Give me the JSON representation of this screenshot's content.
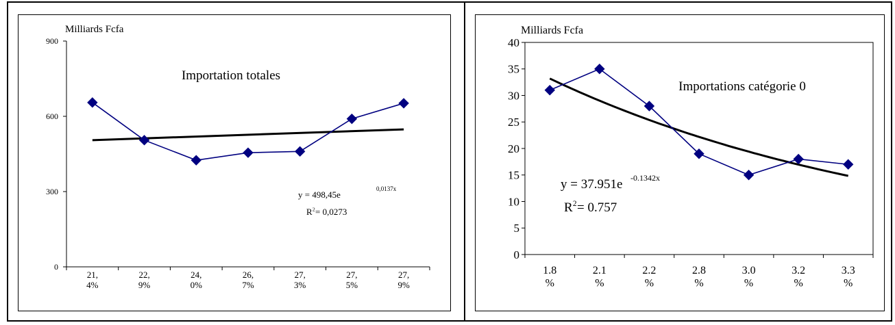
{
  "colors": {
    "series": "#000080",
    "marker": "#000080",
    "trend": "#000000"
  },
  "chart_data": [
    {
      "type": "line",
      "ylabel": "Milliards Fcfa",
      "title": "Importation totales",
      "categories": [
        "21,\n4%",
        "22,\n9%",
        "24,\n0%",
        "26,\n7%",
        "27,\n3%",
        "27,\n5%",
        "27,\n9%"
      ],
      "series": [
        {
          "values": [
            655,
            505,
            425,
            455,
            460,
            590,
            652
          ]
        }
      ],
      "trendline": {
        "type": "exponential",
        "a": 498.45,
        "b": 0.0137,
        "start": 505,
        "end": 548
      },
      "equation": "y = 498,45e",
      "equation_exp": "0,0137x",
      "r2_prefix": "R",
      "r2_sup": "2",
      "r2_value": " = 0,0273",
      "ylim": [
        0,
        900
      ],
      "yticks": [
        0,
        300,
        600,
        900
      ],
      "ytick_labels": [
        "0",
        "300",
        "600",
        "900"
      ],
      "grid": false
    },
    {
      "type": "line",
      "ylabel": "Milliards Fcfa",
      "title": "Importations catégorie 0",
      "categories": [
        "1.8\n%",
        "2.1\n%",
        "2.2\n%",
        "2.8\n%",
        "3.0\n%",
        "3.2\n%",
        "3.3\n%"
      ],
      "series": [
        {
          "values": [
            31,
            35,
            28,
            19,
            15,
            18,
            17
          ]
        }
      ],
      "trendline": {
        "type": "exponential",
        "a": 37.951,
        "b": -0.1342
      },
      "equation": "y = 37.951e",
      "equation_exp": "-0.1342x",
      "r2_prefix": "R",
      "r2_sup": "2",
      "r2_value": " = 0.757",
      "ylim": [
        0,
        40
      ],
      "yticks": [
        0,
        5,
        10,
        15,
        20,
        25,
        30,
        35,
        40
      ],
      "ytick_labels": [
        "0",
        "5",
        "10",
        "15",
        "20",
        "25",
        "30",
        "35",
        "40"
      ],
      "grid": false
    }
  ]
}
